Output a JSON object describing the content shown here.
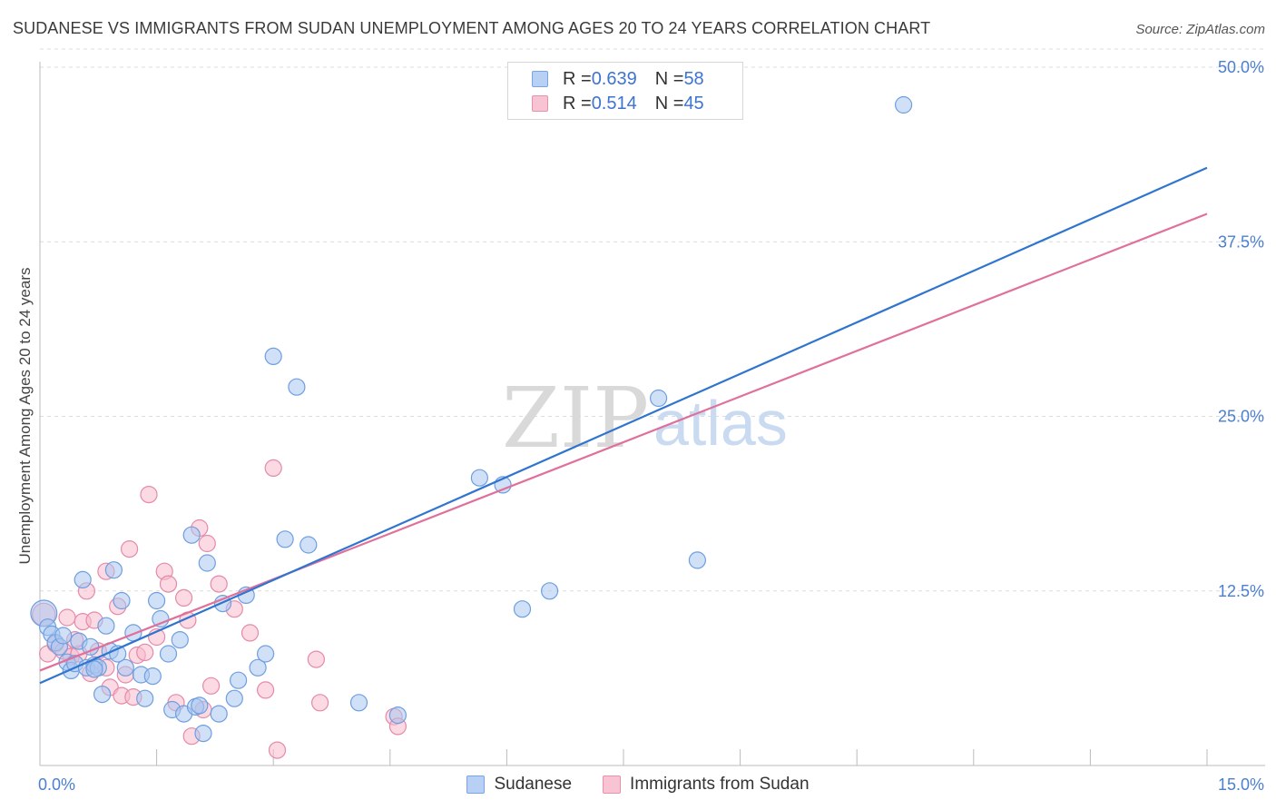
{
  "header": {
    "title": "SUDANESE VS IMMIGRANTS FROM SUDAN UNEMPLOYMENT AMONG AGES 20 TO 24 YEARS CORRELATION CHART",
    "source": "Source: ZipAtlas.com"
  },
  "watermark": {
    "zip": "ZIP",
    "atlas": "atlas"
  },
  "legend_top": {
    "rows": [
      {
        "r_label": "R = ",
        "r_value": "0.639",
        "n_label": "N = ",
        "n_value": "58"
      },
      {
        "r_label": "R = ",
        "r_value": "0.514",
        "n_label": "N = ",
        "n_value": "45"
      }
    ]
  },
  "legend_bottom": {
    "series1": "Sudanese",
    "series2": "Immigrants from Sudan"
  },
  "colors": {
    "blue_fill": "#a9c7f1",
    "blue_stroke": "#6f9ee0",
    "blue_line": "#2f75d0",
    "pink_fill": "#f7bccd",
    "pink_stroke": "#e58aa8",
    "pink_line": "#e0709a",
    "grid": "#dcdcdc",
    "tick_text": "#4a7fd1"
  },
  "chart_data": {
    "type": "scatter",
    "title": "SUDANESE VS IMMIGRANTS FROM SUDAN UNEMPLOYMENT AMONG AGES 20 TO 24 YEARS CORRELATION CHART",
    "xlabel": "",
    "ylabel": "Unemployment Among Ages 20 to 24 years",
    "xlim": [
      0,
      15
    ],
    "ylim": [
      0,
      52
    ],
    "x_tick_labels": [
      "0.0%",
      "15.0%"
    ],
    "y_ticks": [
      12.5,
      25.0,
      37.5,
      50.0
    ],
    "y_tick_labels": [
      "12.5%",
      "25.0%",
      "37.5%",
      "50.0%"
    ],
    "grid": true,
    "series": [
      {
        "name": "Sudanese",
        "R": 0.639,
        "N": 58,
        "trend": {
          "x": [
            0.0,
            15.0
          ],
          "y": [
            5.9,
            42.8
          ]
        },
        "points": [
          [
            0.05,
            10.9,
            1.6
          ],
          [
            0.1,
            9.9,
            1.0
          ],
          [
            0.15,
            9.4,
            1.0
          ],
          [
            0.2,
            8.8,
            1.0
          ],
          [
            0.25,
            8.5,
            1.0
          ],
          [
            0.3,
            9.3,
            1.0
          ],
          [
            0.35,
            7.4,
            1.0
          ],
          [
            0.4,
            6.8,
            1.0
          ],
          [
            0.45,
            7.3,
            1.0
          ],
          [
            0.5,
            8.9,
            1.0
          ],
          [
            0.55,
            13.3,
            1.0
          ],
          [
            0.6,
            7.0,
            1.0
          ],
          [
            0.65,
            8.5,
            1.0
          ],
          [
            0.7,
            7.2,
            1.0
          ],
          [
            0.75,
            7.0,
            1.0
          ],
          [
            0.8,
            5.1,
            1.0
          ],
          [
            0.85,
            10.0,
            1.0
          ],
          [
            0.9,
            8.2,
            1.0
          ],
          [
            0.95,
            14.0,
            1.0
          ],
          [
            1.05,
            11.8,
            1.0
          ],
          [
            1.1,
            7.0,
            1.0
          ],
          [
            1.2,
            9.5,
            1.0
          ],
          [
            1.3,
            6.5,
            1.0
          ],
          [
            1.35,
            4.8,
            1.0
          ],
          [
            1.45,
            6.4,
            1.0
          ],
          [
            1.5,
            11.8,
            1.0
          ],
          [
            1.55,
            10.5,
            1.0
          ],
          [
            1.65,
            8.0,
            1.0
          ],
          [
            1.7,
            4.0,
            1.0
          ],
          [
            1.85,
            3.7,
            1.0
          ],
          [
            1.95,
            16.5,
            1.0
          ],
          [
            2.0,
            4.2,
            1.0
          ],
          [
            2.05,
            4.3,
            1.0
          ],
          [
            2.1,
            2.3,
            1.0
          ],
          [
            2.15,
            14.5,
            1.0
          ],
          [
            2.3,
            3.7,
            1.0
          ],
          [
            2.35,
            11.6,
            1.0
          ],
          [
            2.5,
            4.8,
            1.0
          ],
          [
            2.65,
            12.2,
            1.0
          ],
          [
            2.8,
            7.0,
            1.0
          ],
          [
            2.9,
            8.0,
            1.0
          ],
          [
            3.0,
            29.3,
            1.0
          ],
          [
            3.3,
            27.1,
            1.0
          ],
          [
            3.15,
            16.2,
            1.0
          ],
          [
            3.45,
            15.8,
            1.0
          ],
          [
            4.1,
            4.5,
            1.0
          ],
          [
            4.6,
            3.6,
            1.0
          ],
          [
            5.65,
            20.6,
            1.0
          ],
          [
            5.95,
            20.1,
            1.0
          ],
          [
            6.2,
            11.2,
            1.0
          ],
          [
            6.55,
            12.5,
            1.0
          ],
          [
            7.95,
            26.3,
            1.0
          ],
          [
            8.45,
            14.7,
            1.0
          ],
          [
            11.1,
            47.3,
            1.0
          ],
          [
            0.7,
            6.9,
            1.0
          ],
          [
            1.8,
            9.0,
            1.0
          ],
          [
            2.55,
            6.1,
            1.0
          ],
          [
            1.0,
            8.0,
            1.0
          ]
        ]
      },
      {
        "name": "Immigrants from Sudan",
        "R": 0.514,
        "N": 45,
        "trend": {
          "x": [
            0.0,
            15.0
          ],
          "y": [
            6.8,
            39.5
          ]
        },
        "points": [
          [
            0.05,
            10.8,
            1.4
          ],
          [
            0.1,
            8.0,
            1.0
          ],
          [
            0.2,
            8.7,
            1.0
          ],
          [
            0.3,
            8.2,
            1.0
          ],
          [
            0.35,
            10.6,
            1.0
          ],
          [
            0.4,
            7.8,
            1.0
          ],
          [
            0.5,
            8.0,
            1.0
          ],
          [
            0.55,
            10.3,
            1.0
          ],
          [
            0.6,
            12.5,
            1.0
          ],
          [
            0.65,
            6.6,
            1.0
          ],
          [
            0.7,
            10.4,
            1.0
          ],
          [
            0.75,
            8.2,
            1.0
          ],
          [
            0.85,
            13.9,
            1.0
          ],
          [
            0.9,
            5.6,
            1.0
          ],
          [
            1.0,
            11.4,
            1.0
          ],
          [
            1.05,
            5.0,
            1.0
          ],
          [
            1.1,
            6.5,
            1.0
          ],
          [
            1.15,
            15.5,
            1.0
          ],
          [
            1.25,
            7.9,
            1.0
          ],
          [
            1.35,
            8.1,
            1.0
          ],
          [
            1.4,
            19.4,
            1.0
          ],
          [
            1.5,
            9.2,
            1.0
          ],
          [
            1.6,
            13.9,
            1.0
          ],
          [
            1.65,
            13.0,
            1.0
          ],
          [
            1.75,
            4.5,
            1.0
          ],
          [
            1.85,
            12.0,
            1.0
          ],
          [
            1.9,
            10.4,
            1.0
          ],
          [
            2.05,
            17.0,
            1.0
          ],
          [
            2.1,
            4.0,
            1.0
          ],
          [
            2.15,
            15.9,
            1.0
          ],
          [
            2.2,
            5.7,
            1.0
          ],
          [
            2.3,
            13.0,
            1.0
          ],
          [
            2.5,
            11.2,
            1.0
          ],
          [
            2.7,
            9.5,
            1.0
          ],
          [
            3.0,
            21.3,
            1.0
          ],
          [
            3.05,
            1.1,
            1.0
          ],
          [
            3.55,
            7.6,
            1.0
          ],
          [
            3.6,
            4.5,
            1.0
          ],
          [
            4.55,
            3.5,
            1.0
          ],
          [
            4.6,
            2.8,
            1.0
          ],
          [
            1.95,
            2.1,
            1.0
          ],
          [
            0.85,
            7.0,
            1.0
          ],
          [
            1.2,
            4.9,
            1.0
          ],
          [
            0.45,
            9.0,
            1.0
          ],
          [
            2.9,
            5.4,
            1.0
          ]
        ]
      }
    ]
  }
}
